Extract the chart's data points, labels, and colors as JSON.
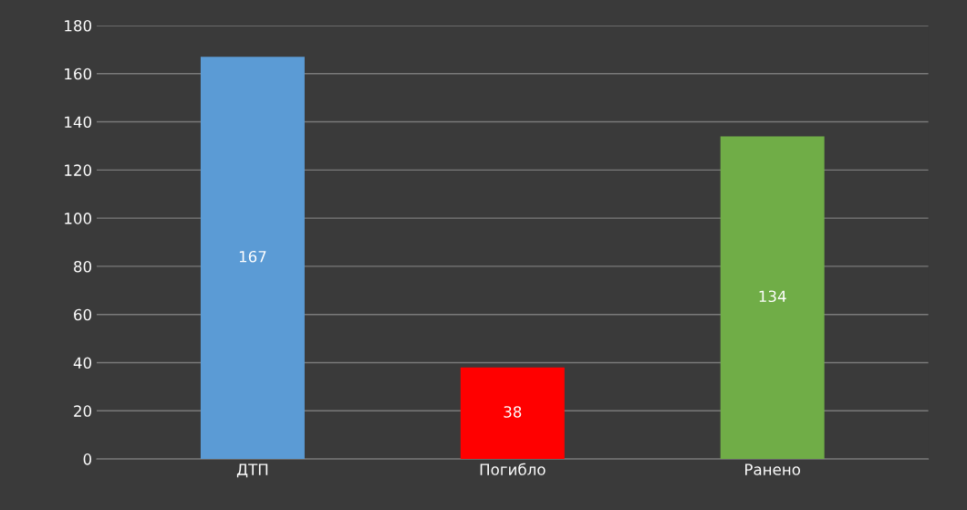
{
  "chart_data": {
    "type": "bar",
    "categories": [
      "ДТП",
      "Погибло",
      "Ранено"
    ],
    "values": [
      167,
      38,
      134
    ],
    "colors": [
      "#5b9bd5",
      "#ff0000",
      "#70ad47"
    ],
    "ylim": [
      0,
      180
    ],
    "yticks": [
      0,
      20,
      40,
      60,
      80,
      100,
      120,
      140,
      160,
      180
    ],
    "grid": "y",
    "data_labels": true
  }
}
